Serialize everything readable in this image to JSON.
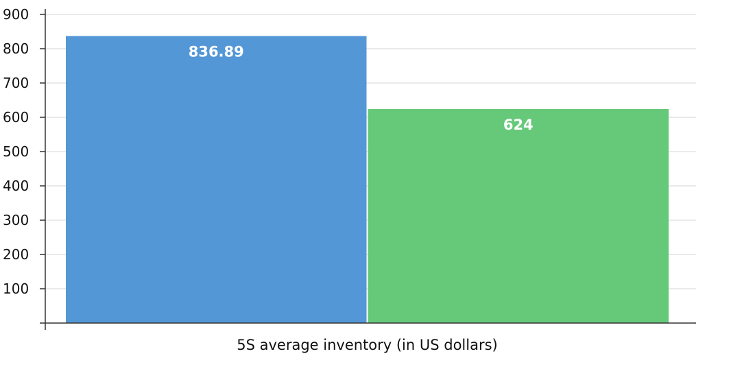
{
  "chart_data": {
    "type": "bar",
    "title": "",
    "xlabel": "5S average inventory (in US dollars)",
    "ylabel": "",
    "ylim": [
      0,
      900
    ],
    "yticks": [
      100,
      200,
      300,
      400,
      500,
      600,
      700,
      800,
      900
    ],
    "grid": true,
    "legend": "none",
    "series": [
      {
        "values": [
          836.89
        ],
        "color": "#5497d6",
        "label": "836.89"
      },
      {
        "values": [
          624
        ],
        "color": "#66c97a",
        "label": "624"
      }
    ],
    "colors": {
      "axis": "#333333",
      "grid": "#e3e3e3"
    }
  }
}
